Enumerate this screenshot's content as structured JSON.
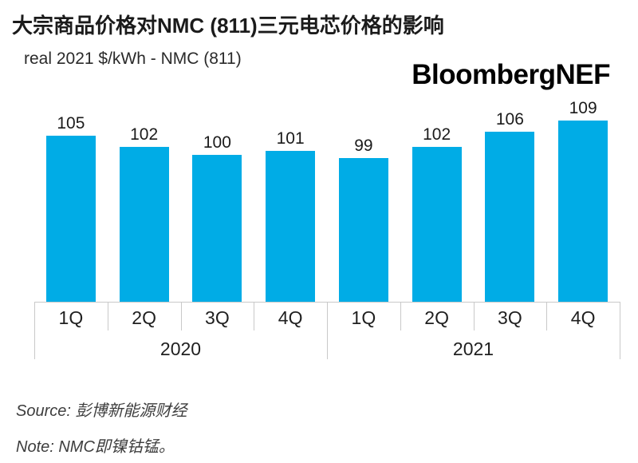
{
  "header": {
    "title": "大宗商品价格对NMC (811)三元电芯价格的影响",
    "subtitle": "real 2021 $/kWh - NMC (811)",
    "brand": "BloombergNEF"
  },
  "chart_data": {
    "type": "bar",
    "title": "大宗商品价格对NMC (811)三元电芯价格的影响",
    "subtitle": "real 2021 $/kWh - NMC (811)",
    "categories": [
      "1Q",
      "2Q",
      "3Q",
      "4Q",
      "1Q",
      "2Q",
      "3Q",
      "4Q"
    ],
    "group_labels": [
      "2020",
      "2021"
    ],
    "groups": [
      {
        "year": "2020",
        "quarters": [
          "1Q",
          "2Q",
          "3Q",
          "4Q"
        ],
        "values": [
          105,
          102,
          100,
          101
        ]
      },
      {
        "year": "2021",
        "quarters": [
          "1Q",
          "2Q",
          "3Q",
          "4Q"
        ],
        "values": [
          99,
          102,
          106,
          109
        ]
      }
    ],
    "values": [
      105,
      102,
      100,
      101,
      99,
      102,
      106,
      109
    ],
    "data_labels_shown": true,
    "xlabel": "",
    "ylabel": "real 2021 $/kWh - NMC (811)",
    "ylim": [
      61,
      141
    ],
    "grid": false,
    "legend": false,
    "bar_color": "#00ACE6",
    "axis_line_color": "#C9C9C9",
    "label_color": "#1B1B1B"
  },
  "footer": {
    "source": "Source: 彭博新能源财经",
    "note": "Note: NMC即镍钴锰。"
  }
}
